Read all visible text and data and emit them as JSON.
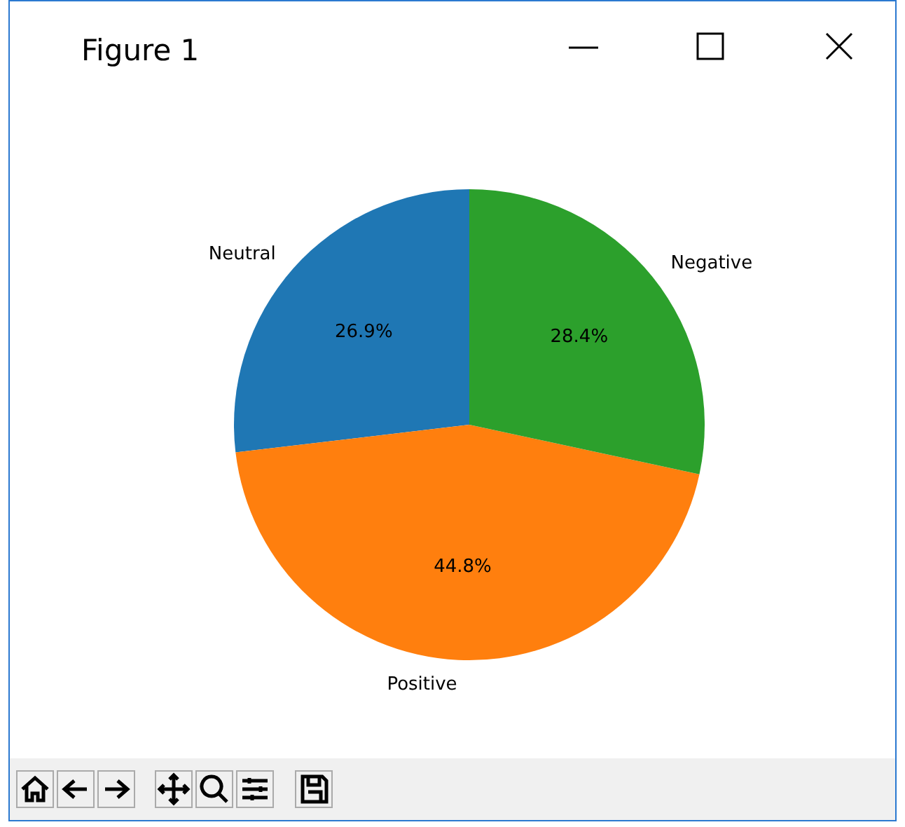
{
  "chart_data": {
    "type": "pie",
    "title": "Figure 1",
    "categories": [
      "Neutral",
      "Positive",
      "Negative"
    ],
    "values": [
      26.9,
      44.8,
      28.4
    ],
    "colors": [
      "#1f77b4",
      "#ff7f0e",
      "#2ca02c"
    ],
    "value_labels": [
      "26.9%",
      "44.8%",
      "28.4%"
    ]
  }
}
